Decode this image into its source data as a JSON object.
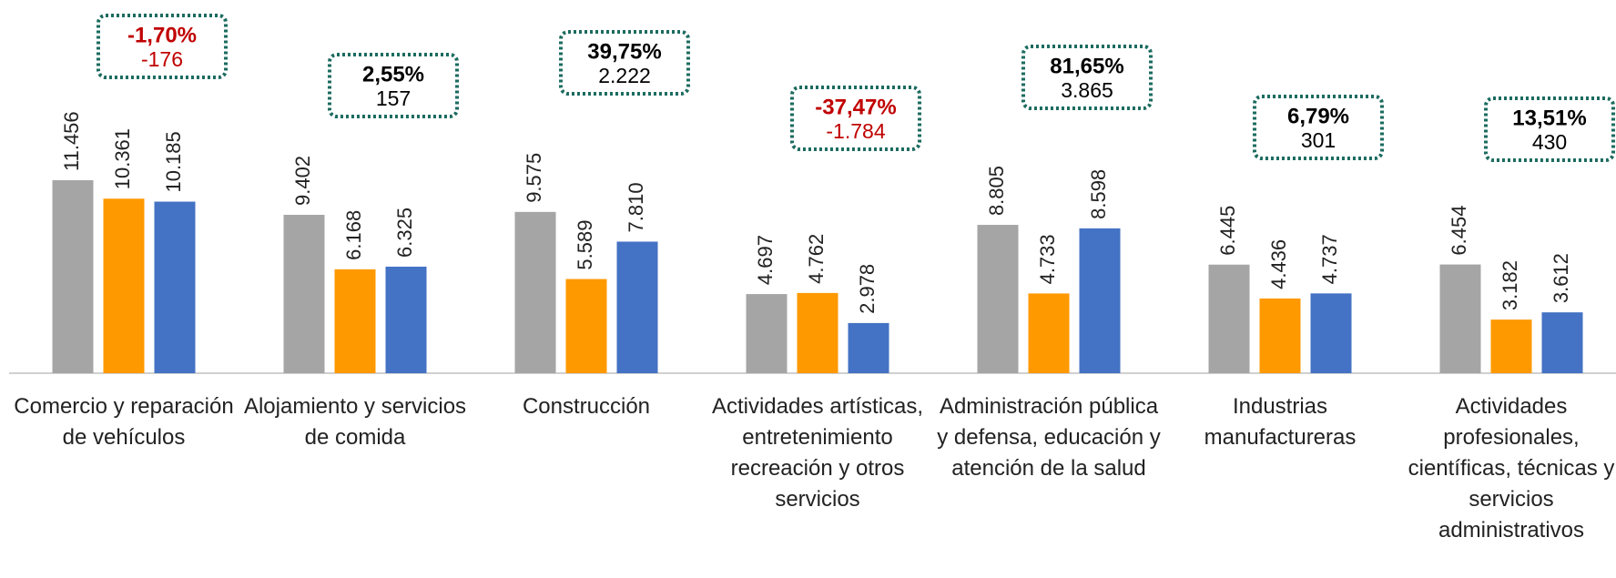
{
  "chart_data": {
    "type": "bar",
    "categories": [
      "Comercio y reparación de vehículos",
      "Alojamiento y servicios de comida",
      "Construcción",
      "Actividades artísticas, entretenimiento recreación y otros servicios",
      "Administración pública y defensa, educación y atención de la salud",
      "Industrias manufactureras",
      "Actividades profesionales, científicas, técnicas y servicios administrativos"
    ],
    "series": [
      {
        "color": "#a5a5a5",
        "values": [
          11456,
          9402,
          9575,
          4697,
          8805,
          6445,
          6454
        ],
        "value_labels": [
          "11.456",
          "9.402",
          "9.575",
          "4.697",
          "8.805",
          "6.445",
          "6.454"
        ]
      },
      {
        "color": "#ff9900",
        "values": [
          10361,
          6168,
          5589,
          4762,
          4733,
          4436,
          3182
        ],
        "value_labels": [
          "10.361",
          "6.168",
          "5.589",
          "4.762",
          "4.733",
          "4.436",
          "3.182"
        ]
      },
      {
        "color": "#4472c4",
        "values": [
          10185,
          6325,
          7810,
          2978,
          8598,
          4737,
          3612
        ],
        "value_labels": [
          "10.185",
          "6.325",
          "7.810",
          "2.978",
          "8.598",
          "4.737",
          "3.612"
        ]
      }
    ],
    "annotations": [
      {
        "percent": "-1,70%",
        "difference": "-176",
        "color": "#c00000"
      },
      {
        "percent": "2,55%",
        "difference": "157",
        "color": "#000000"
      },
      {
        "percent": "39,75%",
        "difference": "2.222",
        "color": "#000000"
      },
      {
        "percent": "-37,47%",
        "difference": "-1.784",
        "color": "#c00000"
      },
      {
        "percent": "81,65%",
        "difference": "3.865",
        "color": "#000000"
      },
      {
        "percent": "6,79%",
        "difference": "301",
        "color": "#000000"
      },
      {
        "percent": "13,51%",
        "difference": "430",
        "color": "#000000"
      }
    ]
  }
}
